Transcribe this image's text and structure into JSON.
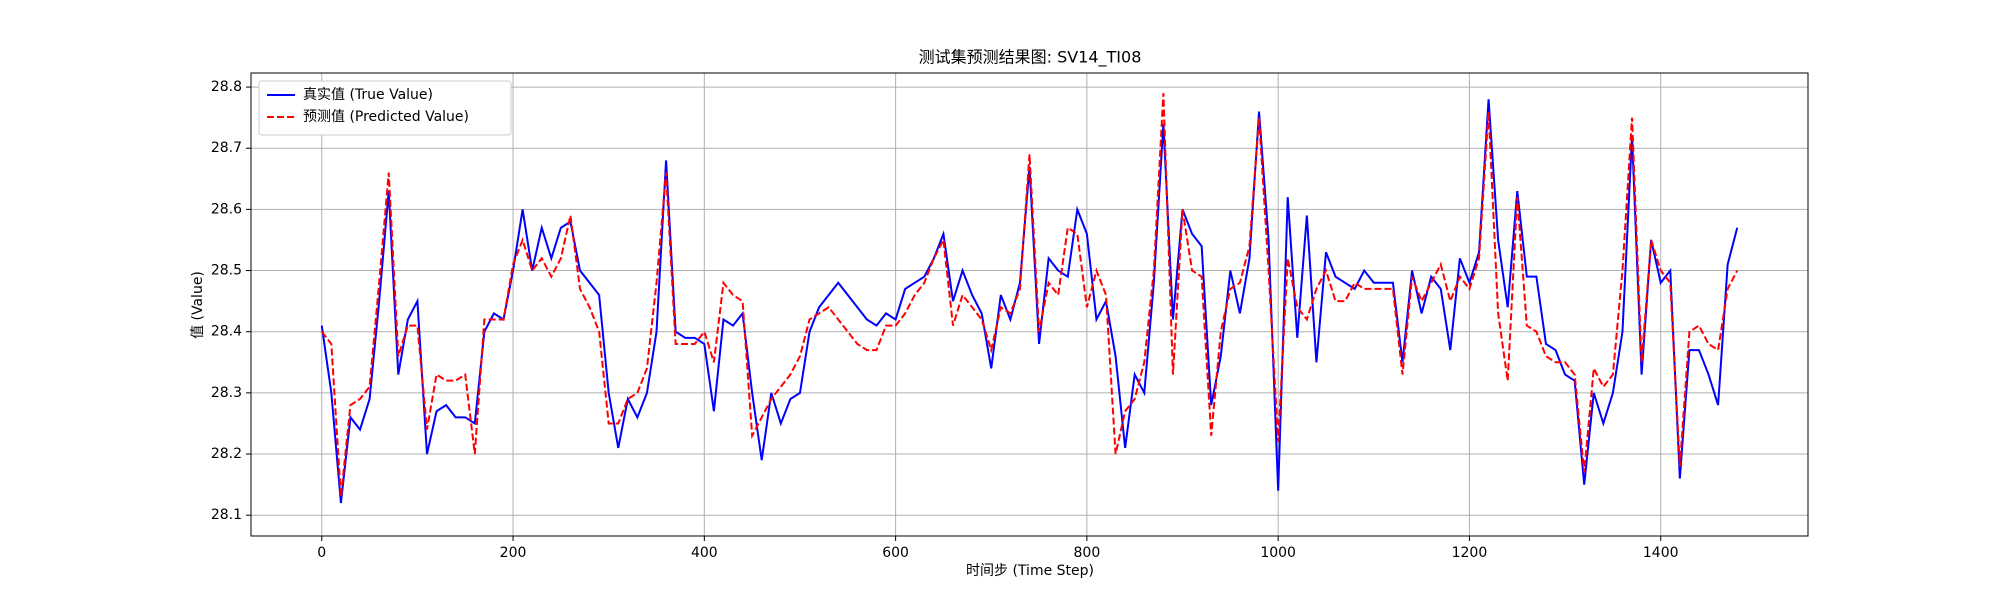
{
  "chart_data": {
    "type": "line",
    "title": "测试集预测结果图: SV14_TI08",
    "x_label": "时间步 (Time Step)",
    "y_label": "值 (Value)",
    "x": [
      0,
      10,
      20,
      30,
      40,
      50,
      60,
      70,
      80,
      90,
      100,
      110,
      120,
      130,
      140,
      150,
      160,
      170,
      180,
      190,
      200,
      210,
      220,
      230,
      240,
      250,
      260,
      270,
      280,
      290,
      300,
      310,
      320,
      330,
      340,
      350,
      360,
      370,
      380,
      390,
      400,
      410,
      420,
      430,
      440,
      450,
      460,
      470,
      480,
      490,
      500,
      510,
      520,
      530,
      540,
      550,
      560,
      570,
      580,
      590,
      600,
      610,
      620,
      630,
      640,
      650,
      660,
      670,
      680,
      690,
      700,
      710,
      720,
      730,
      740,
      750,
      760,
      770,
      780,
      790,
      800,
      810,
      820,
      830,
      840,
      850,
      860,
      870,
      880,
      890,
      900,
      910,
      920,
      930,
      940,
      950,
      960,
      970,
      980,
      990,
      1000,
      1010,
      1020,
      1030,
      1040,
      1050,
      1060,
      1070,
      1080,
      1090,
      1100,
      1110,
      1120,
      1130,
      1140,
      1150,
      1160,
      1170,
      1180,
      1190,
      1200,
      1210,
      1220,
      1230,
      1240,
      1250,
      1260,
      1270,
      1280,
      1290,
      1300,
      1310,
      1320,
      1330,
      1340,
      1350,
      1360,
      1370,
      1380,
      1390,
      1400,
      1410,
      1420,
      1430,
      1440,
      1450,
      1460,
      1470,
      1480
    ],
    "series": [
      {
        "name": "真实值 (True Value)",
        "color": "#0000ff",
        "linestyle": "solid",
        "values": [
          28.41,
          28.3,
          28.12,
          28.26,
          28.24,
          28.29,
          28.45,
          28.63,
          28.33,
          28.42,
          28.45,
          28.2,
          28.27,
          28.28,
          28.26,
          28.26,
          28.25,
          28.4,
          28.43,
          28.42,
          28.5,
          28.6,
          28.5,
          28.57,
          28.52,
          28.57,
          28.58,
          28.5,
          28.48,
          28.46,
          28.3,
          28.21,
          28.29,
          28.26,
          28.3,
          28.4,
          28.68,
          28.4,
          28.39,
          28.39,
          28.38,
          28.27,
          28.42,
          28.41,
          28.43,
          28.3,
          28.19,
          28.3,
          28.25,
          28.29,
          28.3,
          28.4,
          28.44,
          28.46,
          28.48,
          28.46,
          28.44,
          28.42,
          28.41,
          28.43,
          28.42,
          28.47,
          28.48,
          28.49,
          28.52,
          28.56,
          28.45,
          28.5,
          28.46,
          28.43,
          28.34,
          28.46,
          28.42,
          28.48,
          28.67,
          28.38,
          28.52,
          28.5,
          28.49,
          28.6,
          28.56,
          28.42,
          28.45,
          28.36,
          28.21,
          28.33,
          28.3,
          28.48,
          28.74,
          28.42,
          28.6,
          28.56,
          28.54,
          28.28,
          28.36,
          28.5,
          28.43,
          28.52,
          28.76,
          28.55,
          28.14,
          28.62,
          28.39,
          28.59,
          28.35,
          28.53,
          28.49,
          28.48,
          28.47,
          28.5,
          28.48,
          28.48,
          28.48,
          28.35,
          28.5,
          28.43,
          28.49,
          28.47,
          28.37,
          28.52,
          28.48,
          28.53,
          28.78,
          28.55,
          28.44,
          28.63,
          28.49,
          28.49,
          28.38,
          28.37,
          28.33,
          28.32,
          28.15,
          28.3,
          28.25,
          28.3,
          28.4,
          28.72,
          28.33,
          28.55,
          28.48,
          28.5,
          28.16,
          28.37,
          28.37,
          28.33,
          28.28,
          28.51,
          28.57
        ]
      },
      {
        "name": "预测值 (Predicted Value)",
        "color": "#ff0000",
        "linestyle": "dashed",
        "values": [
          28.4,
          28.38,
          28.13,
          28.28,
          28.29,
          28.31,
          28.48,
          28.66,
          28.36,
          28.41,
          28.41,
          28.24,
          28.33,
          28.32,
          28.32,
          28.33,
          28.2,
          28.42,
          28.42,
          28.42,
          28.51,
          28.55,
          28.5,
          28.52,
          28.49,
          28.52,
          28.59,
          28.47,
          28.44,
          28.4,
          28.25,
          28.25,
          28.29,
          28.3,
          28.34,
          28.48,
          28.66,
          28.38,
          28.38,
          28.38,
          28.4,
          28.35,
          28.48,
          28.46,
          28.45,
          28.23,
          28.26,
          28.29,
          28.31,
          28.33,
          28.36,
          28.42,
          28.43,
          28.44,
          28.42,
          28.4,
          28.38,
          28.37,
          28.37,
          28.41,
          28.41,
          28.43,
          28.46,
          28.48,
          28.52,
          28.55,
          28.41,
          28.46,
          28.44,
          28.42,
          28.37,
          28.44,
          28.43,
          28.47,
          28.69,
          28.4,
          28.48,
          28.46,
          28.57,
          28.56,
          28.44,
          28.5,
          28.46,
          28.2,
          28.27,
          28.29,
          28.35,
          28.5,
          28.79,
          28.33,
          28.6,
          28.5,
          28.49,
          28.23,
          28.4,
          28.47,
          28.48,
          28.54,
          28.75,
          28.5,
          28.22,
          28.52,
          28.44,
          28.42,
          28.47,
          28.5,
          28.45,
          28.45,
          28.48,
          28.47,
          28.47,
          28.47,
          28.47,
          28.33,
          28.49,
          28.45,
          28.48,
          28.51,
          28.45,
          28.49,
          28.47,
          28.52,
          28.76,
          28.43,
          28.32,
          28.62,
          28.41,
          28.4,
          28.36,
          28.35,
          28.35,
          28.33,
          28.17,
          28.34,
          28.31,
          28.33,
          28.5,
          28.75,
          28.35,
          28.55,
          28.5,
          28.48,
          28.18,
          28.4,
          28.41,
          28.38,
          28.37,
          28.47,
          28.5
        ]
      }
    ],
    "xlim": [
      -74,
      1554
    ],
    "ylim": [
      28.066,
      28.823
    ],
    "xticks": [
      0,
      200,
      400,
      600,
      800,
      1000,
      1200,
      1400
    ],
    "yticks": [
      28.1,
      28.2,
      28.3,
      28.4,
      28.5,
      28.6,
      28.7,
      28.8
    ],
    "grid": true,
    "legend": "upper left"
  }
}
